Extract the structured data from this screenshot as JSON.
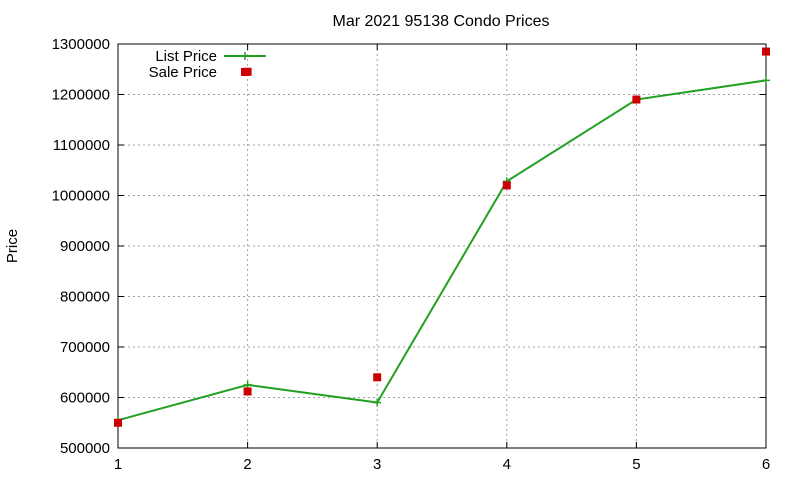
{
  "chart_data": {
    "type": "line",
    "title": "Mar 2021 95138 Condo Prices",
    "xlabel": "",
    "ylabel": "Price",
    "xlim": [
      1,
      6
    ],
    "ylim": [
      500000,
      1300000
    ],
    "x_ticks": [
      "1",
      "2",
      "3",
      "4",
      "5",
      "6"
    ],
    "y_ticks": [
      "500000",
      "600000",
      "700000",
      "800000",
      "900000",
      "1000000",
      "1100000",
      "1200000",
      "1300000"
    ],
    "grid": true,
    "legend_position": "top-left",
    "x": [
      1,
      2,
      3,
      4,
      5,
      6
    ],
    "series": [
      {
        "name": "List Price",
        "style": "line-with-plus-markers",
        "color": "#22a022",
        "values": [
          555000,
          625000,
          590000,
          1028000,
          1190000,
          1228000
        ]
      },
      {
        "name": "Sale Price",
        "style": "square-markers",
        "color": "#cc0000",
        "values": [
          550000,
          612000,
          640000,
          1020000,
          1190000,
          1285000
        ]
      }
    ],
    "extra_points": [
      {
        "series": "Sale Price",
        "x": 2,
        "y": 1245000
      }
    ]
  }
}
